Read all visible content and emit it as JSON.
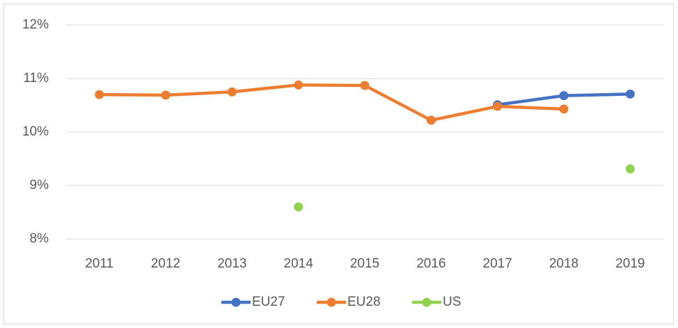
{
  "chart_data": {
    "type": "line",
    "categories": [
      "2011",
      "2012",
      "2013",
      "2014",
      "2015",
      "2016",
      "2017",
      "2018",
      "2019"
    ],
    "series": [
      {
        "name": "EU27",
        "color": "#4472c4",
        "values": [
          null,
          null,
          null,
          null,
          null,
          null,
          10.51,
          10.68,
          10.71
        ]
      },
      {
        "name": "EU28",
        "color": "#ed7d31",
        "values": [
          10.7,
          10.69,
          10.75,
          10.88,
          10.87,
          10.22,
          10.48,
          10.43,
          null
        ]
      },
      {
        "name": "US",
        "color": "#92d050",
        "values": [
          null,
          null,
          null,
          8.6,
          null,
          null,
          null,
          null,
          9.31
        ]
      }
    ],
    "ylim": [
      8,
      12
    ],
    "yticks": [
      {
        "value": 8,
        "label": "8%"
      },
      {
        "value": 9,
        "label": "9%"
      },
      {
        "value": 10,
        "label": "10%"
      },
      {
        "value": 11,
        "label": "11%"
      },
      {
        "value": 12,
        "label": "12%"
      }
    ],
    "grid": true,
    "legend": "bottom"
  }
}
